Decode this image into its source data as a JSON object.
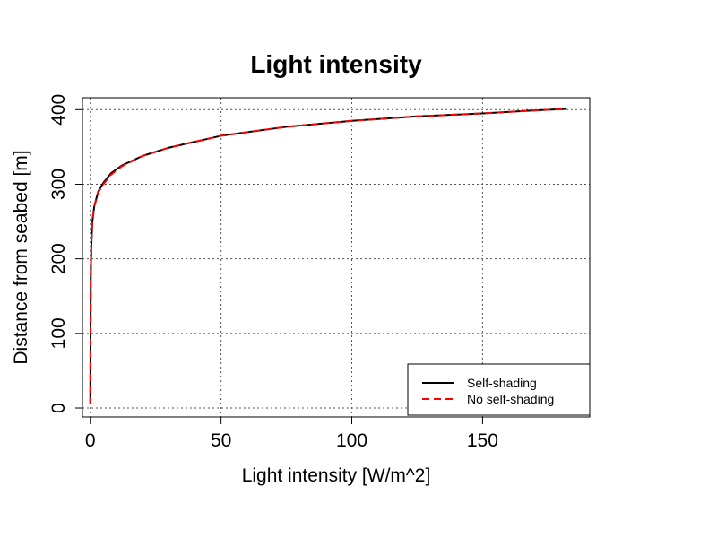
{
  "chart_data": {
    "type": "line",
    "title": "Light intensity",
    "xlabel": "Light intensity [W/m^2]",
    "ylabel": "Distance from seabed [m]",
    "xlim": [
      -3,
      191
    ],
    "ylim": [
      -12,
      416
    ],
    "xticks": [
      0,
      50,
      100,
      150
    ],
    "yticks": [
      0,
      100,
      200,
      300,
      400
    ],
    "grid": true,
    "legend_position": "bottom-right",
    "series": [
      {
        "name": "Self-shading",
        "color": "#000000",
        "dash": "solid",
        "x": [
          0.0,
          0.1,
          0.2,
          0.4,
          0.8,
          1.5,
          3.0,
          5.0,
          8.0,
          12.0,
          20.0,
          30.0,
          50.0,
          75.0,
          100.0,
          125.0,
          150.0,
          170.0,
          182.0
        ],
        "y": [
          5,
          100,
          180,
          220,
          250,
          270,
          290,
          302,
          315,
          325,
          338,
          349,
          365,
          377,
          385,
          391,
          395,
          399,
          401
        ]
      },
      {
        "name": "No self-shading",
        "color": "#ff0000",
        "dash": "dashed",
        "x": [
          0.0,
          0.1,
          0.2,
          0.4,
          0.8,
          1.5,
          3.0,
          5.0,
          8.0,
          12.0,
          20.0,
          30.0,
          50.0,
          75.0,
          100.0,
          125.0,
          150.0,
          170.0,
          182.0
        ],
        "y": [
          5,
          105,
          185,
          223,
          252,
          270,
          289,
          300,
          313,
          324,
          338,
          349,
          365,
          377,
          385,
          391,
          395,
          399,
          401
        ]
      }
    ]
  }
}
